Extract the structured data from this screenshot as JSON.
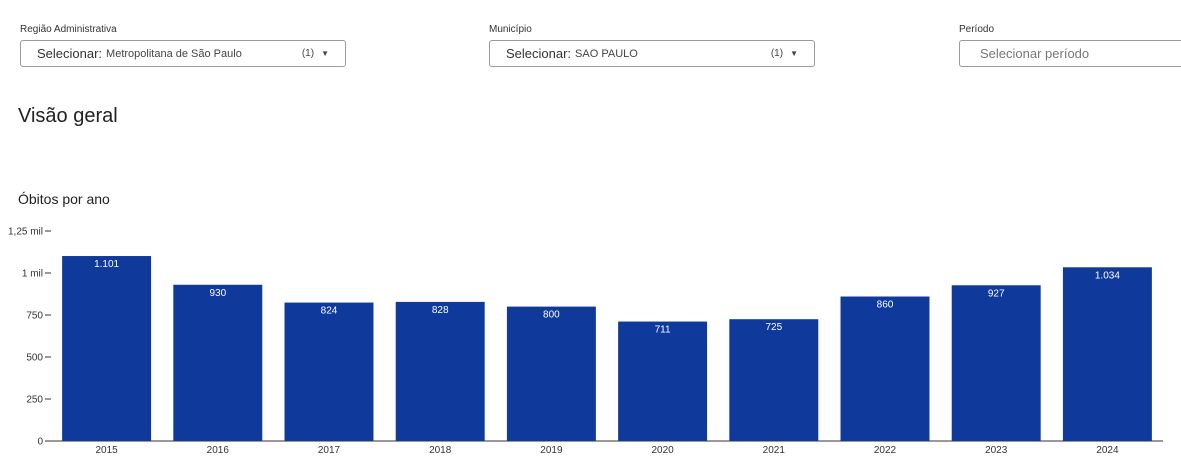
{
  "filters": {
    "regiao": {
      "label": "Região Administrativa",
      "prefix": "Selecionar:",
      "value": "Metropolitana de São Paulo",
      "count": "(1)"
    },
    "municipio": {
      "label": "Município",
      "prefix": "Selecionar:",
      "value": "SAO PAULO",
      "count": "(1)"
    },
    "periodo": {
      "label": "Período",
      "placeholder": "Selecionar período"
    }
  },
  "page": {
    "title": "Visão geral"
  },
  "chart_title": "Óbitos por ano",
  "colors": {
    "bar": "#0f3a9c",
    "axis": "#333333"
  },
  "chart_data": {
    "type": "bar",
    "title": "Óbitos por ano",
    "xlabel": "",
    "ylabel": "",
    "categories": [
      "2015",
      "2016",
      "2017",
      "2018",
      "2019",
      "2020",
      "2021",
      "2022",
      "2023",
      "2024"
    ],
    "values": [
      1101,
      930,
      824,
      828,
      800,
      711,
      725,
      860,
      927,
      1034
    ],
    "data_labels": [
      "1.101",
      "930",
      "824",
      "828",
      "800",
      "711",
      "725",
      "860",
      "927",
      "1.034"
    ],
    "ylim": [
      0,
      1250
    ],
    "yticks": [
      {
        "value": 0,
        "label": "0"
      },
      {
        "value": 250,
        "label": "250"
      },
      {
        "value": 500,
        "label": "500"
      },
      {
        "value": 750,
        "label": "750"
      },
      {
        "value": 1000,
        "label": "1 mil"
      },
      {
        "value": 1250,
        "label": "1,25 mil"
      }
    ],
    "grid": false,
    "legend": "none"
  }
}
